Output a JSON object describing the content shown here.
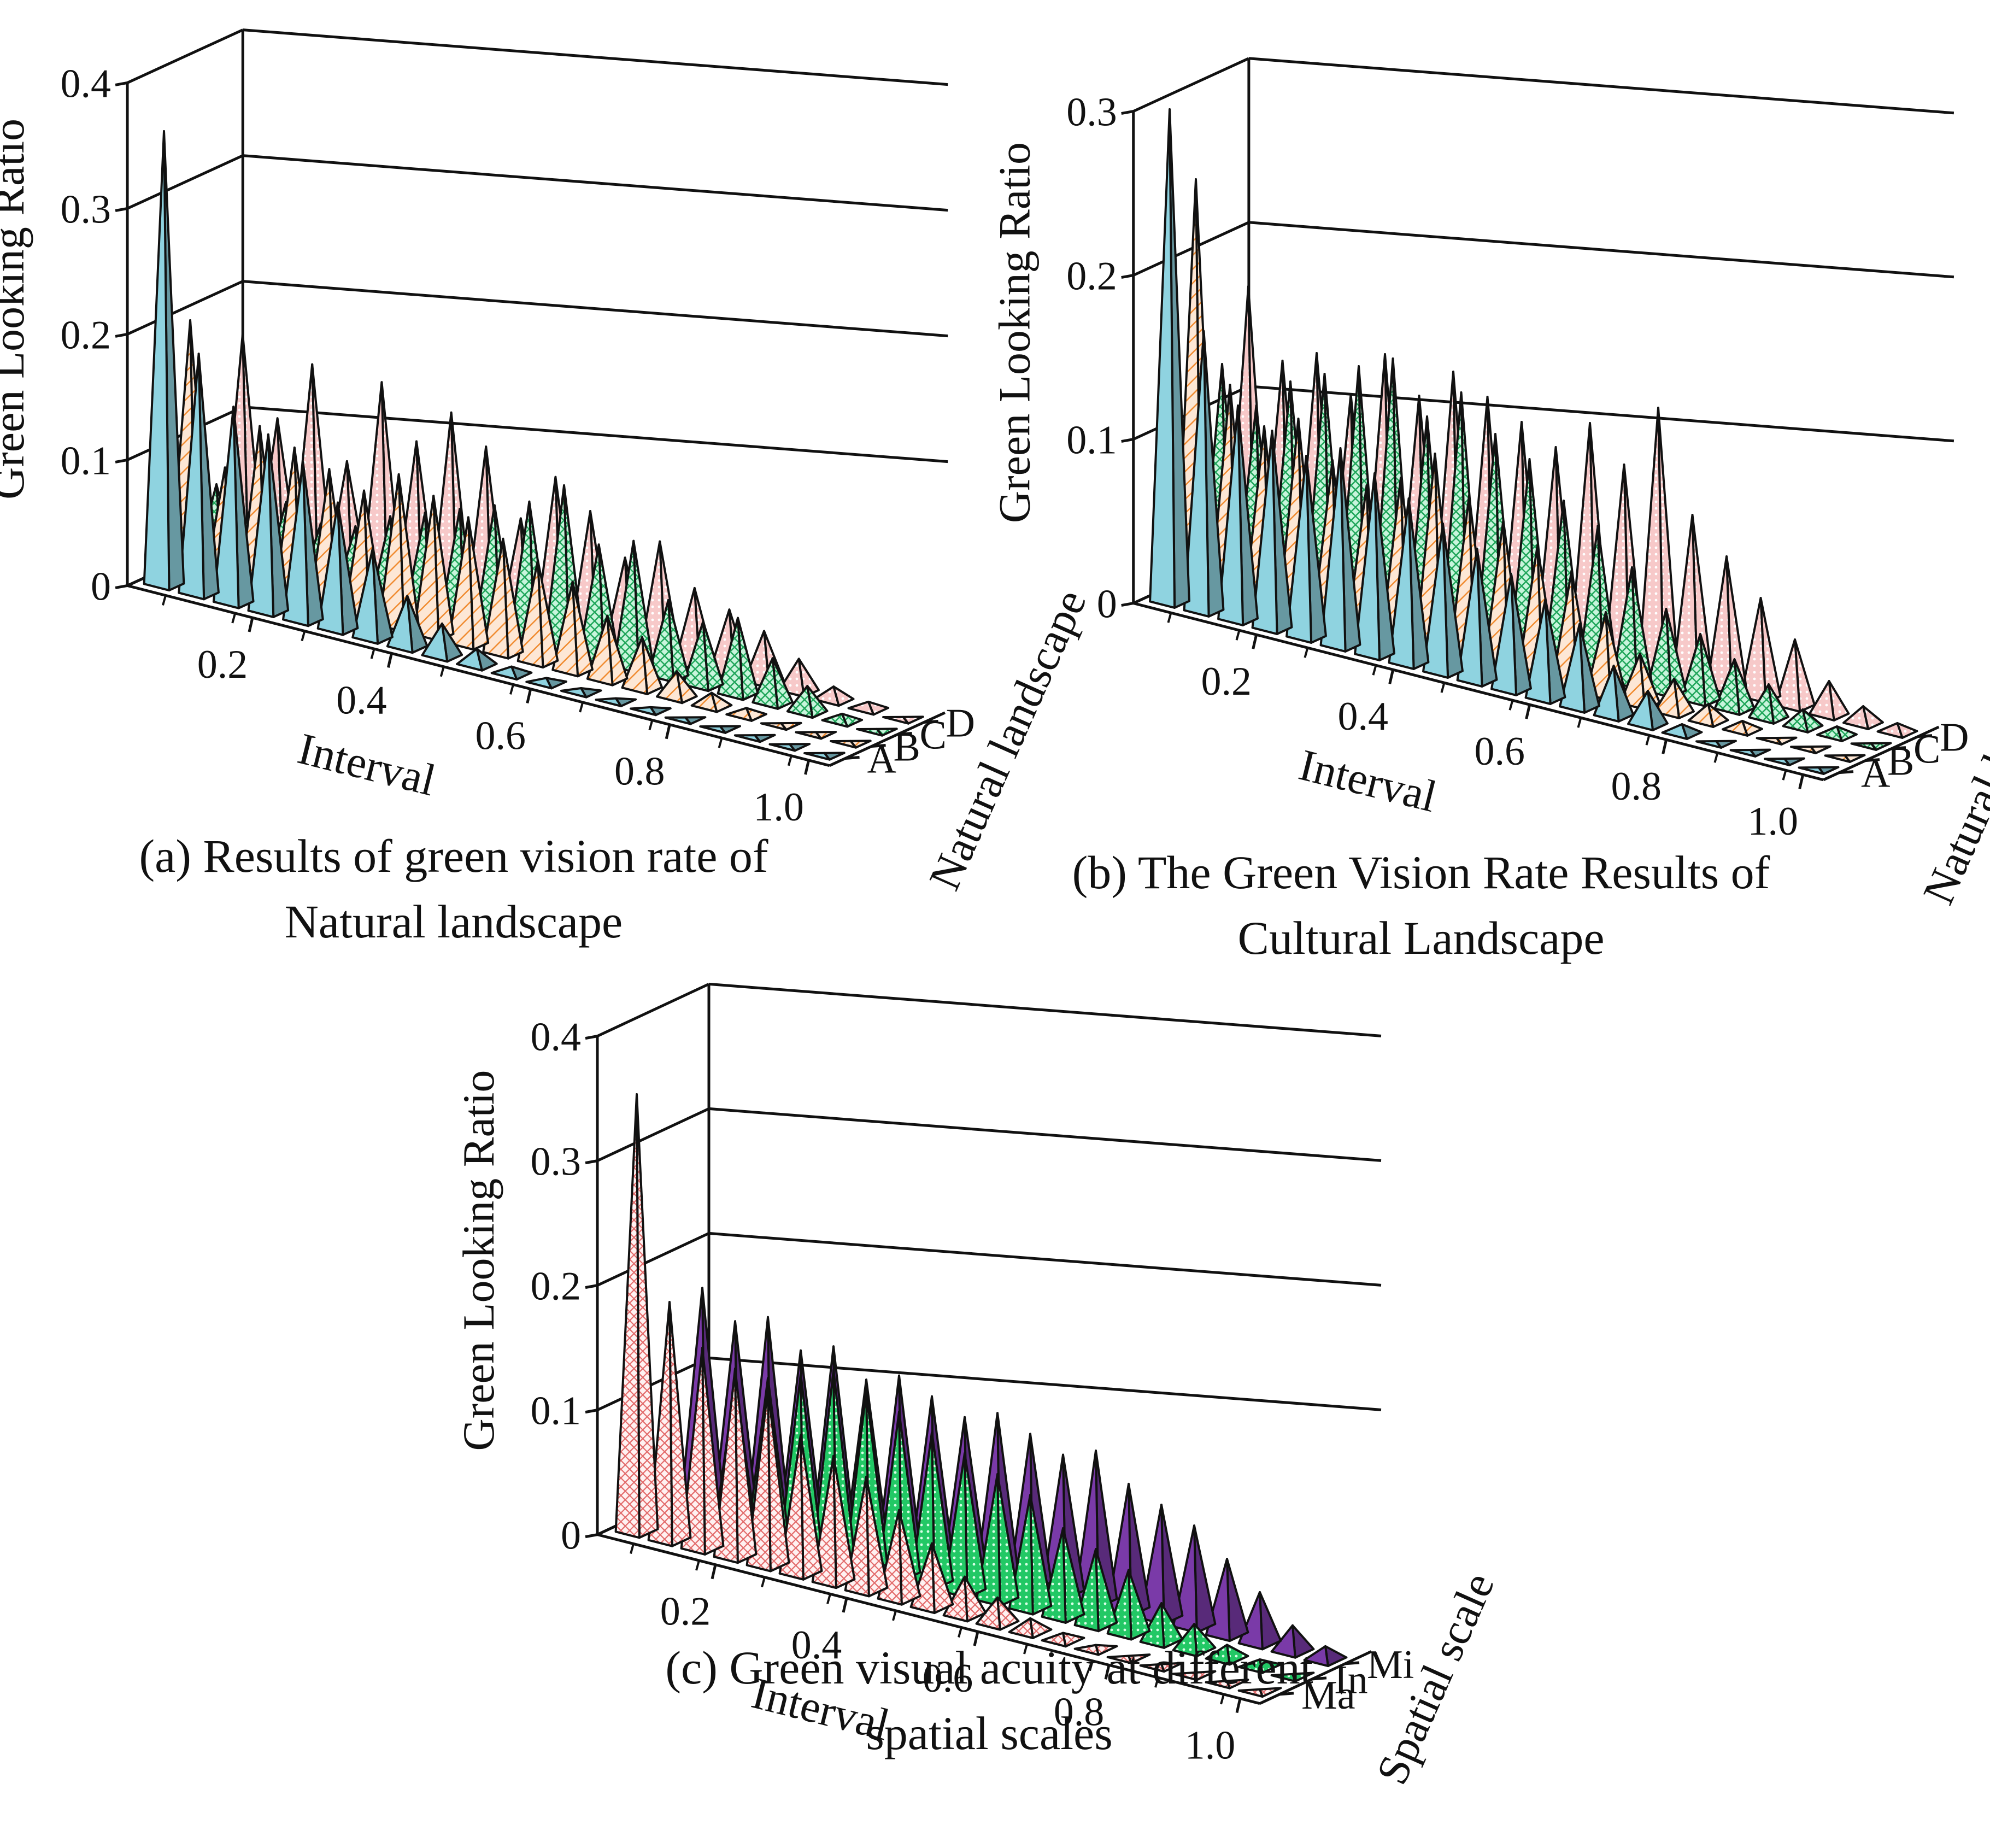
{
  "figures": [
    {
      "caption_lines": [
        "(a) Results of green vision rate of",
        "Natural landscape"
      ],
      "ylabel": "Green Looking Ratio",
      "xlabel": "Interval",
      "zlabel": "Natural landscape"
    },
    {
      "caption_lines": [
        "(b) The Green Vision Rate Results of",
        "Cultural Landscape"
      ],
      "ylabel": "Green Looking Ratio",
      "xlabel": "Interval",
      "zlabel": "Natural landscape"
    },
    {
      "caption_lines": [
        "(c) Green visual acuity at different",
        "spatial scales"
      ],
      "ylabel": "Green Looking Ratio",
      "xlabel": "Interval",
      "zlabel": "Spatial scale"
    }
  ],
  "chart_data": [
    {
      "type": "bar",
      "style": "3d-pyramid",
      "caption": "(a) Results of green vision rate of Natural landscape",
      "xlabel": "Interval",
      "ylabel": "Green Looking Ratio",
      "zlabel": "Natural landscape",
      "x": [
        0.05,
        0.1,
        0.15,
        0.2,
        0.25,
        0.3,
        0.35,
        0.4,
        0.45,
        0.5,
        0.55,
        0.6,
        0.65,
        0.7,
        0.75,
        0.8,
        0.85,
        0.9,
        0.95,
        1.0
      ],
      "xticks": [
        "0.2",
        "0.4",
        "0.6",
        "0.8",
        "1.0"
      ],
      "yticks": [
        "0",
        "0.1",
        "0.2",
        "0.3",
        "0.4"
      ],
      "ylim": [
        0,
        0.4
      ],
      "grid": true,
      "series": [
        {
          "name": "A",
          "color": "#8fd3e0",
          "pattern": "solid",
          "values": [
            0.36,
            0.19,
            0.155,
            0.14,
            0.125,
            0.1,
            0.07,
            0.04,
            0.025,
            0.012,
            0.005,
            0.003,
            0.002,
            0.001,
            0.001,
            0.0,
            0.0,
            0.0,
            0.0,
            0.0
          ]
        },
        {
          "name": "B",
          "color": "#f5c9a8",
          "pattern": "hatch",
          "values": [
            0.2,
            0.09,
            0.13,
            0.12,
            0.11,
            0.1,
            0.12,
            0.11,
            0.1,
            0.09,
            0.08,
            0.07,
            0.05,
            0.04,
            0.02,
            0.01,
            0.005,
            0.0,
            0.0,
            0.0
          ]
        },
        {
          "name": "C",
          "color": "#a8f0c8",
          "pattern": "crosshatch",
          "values": [
            0.06,
            0.05,
            0.06,
            0.05,
            0.055,
            0.07,
            0.08,
            0.09,
            0.1,
            0.11,
            0.13,
            0.09,
            0.1,
            0.06,
            0.05,
            0.06,
            0.035,
            0.02,
            0.005,
            0.0
          ]
        },
        {
          "name": "D",
          "color": "#f3b8b8",
          "pattern": "dots",
          "values": [
            0.17,
            0.11,
            0.16,
            0.09,
            0.16,
            0.12,
            0.15,
            0.13,
            0.08,
            0.12,
            0.1,
            0.07,
            0.09,
            0.06,
            0.05,
            0.04,
            0.025,
            0.01,
            0.005,
            0.0
          ]
        }
      ]
    },
    {
      "type": "bar",
      "style": "3d-pyramid",
      "caption": "(b) The Green Vision Rate Results of Cultural Landscape",
      "xlabel": "Interval",
      "ylabel": "Green Looking Ratio",
      "zlabel": "Natural landscape",
      "x": [
        0.05,
        0.1,
        0.15,
        0.2,
        0.25,
        0.3,
        0.35,
        0.4,
        0.45,
        0.5,
        0.55,
        0.6,
        0.65,
        0.7,
        0.75,
        0.8,
        0.85,
        0.9,
        0.95,
        1.0
      ],
      "xticks": [
        "0.2",
        "0.4",
        "0.6",
        "0.8",
        "1.0"
      ],
      "yticks": [
        "0",
        "0.1",
        "0.2",
        "0.3"
      ],
      "ylim": [
        0,
        0.3
      ],
      "grid": true,
      "series": [
        {
          "name": "A",
          "color": "#8fd3e0",
          "pattern": "solid",
          "values": [
            0.3,
            0.17,
            0.13,
            0.12,
            0.11,
            0.12,
            0.11,
            0.1,
            0.09,
            0.08,
            0.07,
            0.06,
            0.05,
            0.03,
            0.02,
            0.005,
            0.0,
            0.0,
            0.0,
            0.0
          ]
        },
        {
          "name": "B",
          "color": "#f5c9a8",
          "pattern": "hatch",
          "values": [
            0.25,
            0.13,
            0.11,
            0.12,
            0.1,
            0.09,
            0.1,
            0.12,
            0.1,
            0.09,
            0.08,
            0.07,
            0.05,
            0.03,
            0.02,
            0.01,
            0.005,
            0.0,
            0.0,
            0.0
          ]
        },
        {
          "name": "C",
          "color": "#a8f0c8",
          "pattern": "crosshatch",
          "values": [
            0.13,
            0.11,
            0.13,
            0.14,
            0.15,
            0.16,
            0.13,
            0.15,
            0.13,
            0.12,
            0.1,
            0.09,
            0.07,
            0.05,
            0.04,
            0.03,
            0.02,
            0.01,
            0.005,
            0.0
          ]
        },
        {
          "name": "D",
          "color": "#f3b8b8",
          "pattern": "dots",
          "values": [
            0.17,
            0.13,
            0.14,
            0.12,
            0.15,
            0.13,
            0.15,
            0.14,
            0.13,
            0.12,
            0.14,
            0.12,
            0.16,
            0.1,
            0.08,
            0.06,
            0.04,
            0.02,
            0.01,
            0.005
          ]
        }
      ]
    },
    {
      "type": "bar",
      "style": "3d-pyramid",
      "caption": "(c) Green visual acuity at different spatial scales",
      "xlabel": "Interval",
      "ylabel": "Green Looking Ratio",
      "zlabel": "Spatial scale",
      "x": [
        0.05,
        0.1,
        0.15,
        0.2,
        0.25,
        0.3,
        0.35,
        0.4,
        0.45,
        0.5,
        0.55,
        0.6,
        0.65,
        0.7,
        0.75,
        0.8,
        0.85,
        0.9,
        0.95,
        1.0
      ],
      "xticks": [
        "0.2",
        "0.4",
        "0.6",
        "0.8",
        "1.0"
      ],
      "yticks": [
        "0",
        "0.1",
        "0.2",
        "0.3",
        "0.4"
      ],
      "ylim": [
        0,
        0.4
      ],
      "grid": true,
      "series": [
        {
          "name": "Ma",
          "color": "#fbe3e3",
          "pattern": "crosshatch",
          "values": [
            0.35,
            0.19,
            0.16,
            0.15,
            0.14,
            0.11,
            0.1,
            0.09,
            0.07,
            0.05,
            0.03,
            0.02,
            0.01,
            0.005,
            0.002,
            0.0,
            0.0,
            0.0,
            0.0,
            0.0
          ]
        },
        {
          "name": "In",
          "color": "#3ed97a",
          "pattern": "dots",
          "values": [
            0.1,
            0.09,
            0.12,
            0.13,
            0.14,
            0.15,
            0.14,
            0.13,
            0.12,
            0.11,
            0.1,
            0.09,
            0.07,
            0.06,
            0.05,
            0.03,
            0.02,
            0.01,
            0.005,
            0.0
          ]
        },
        {
          "name": "Mi",
          "color": "#7a3aa8",
          "pattern": "solid",
          "values": [
            0.17,
            0.15,
            0.16,
            0.14,
            0.15,
            0.13,
            0.14,
            0.13,
            0.12,
            0.13,
            0.12,
            0.11,
            0.12,
            0.1,
            0.09,
            0.08,
            0.06,
            0.04,
            0.02,
            0.01
          ]
        }
      ]
    }
  ]
}
